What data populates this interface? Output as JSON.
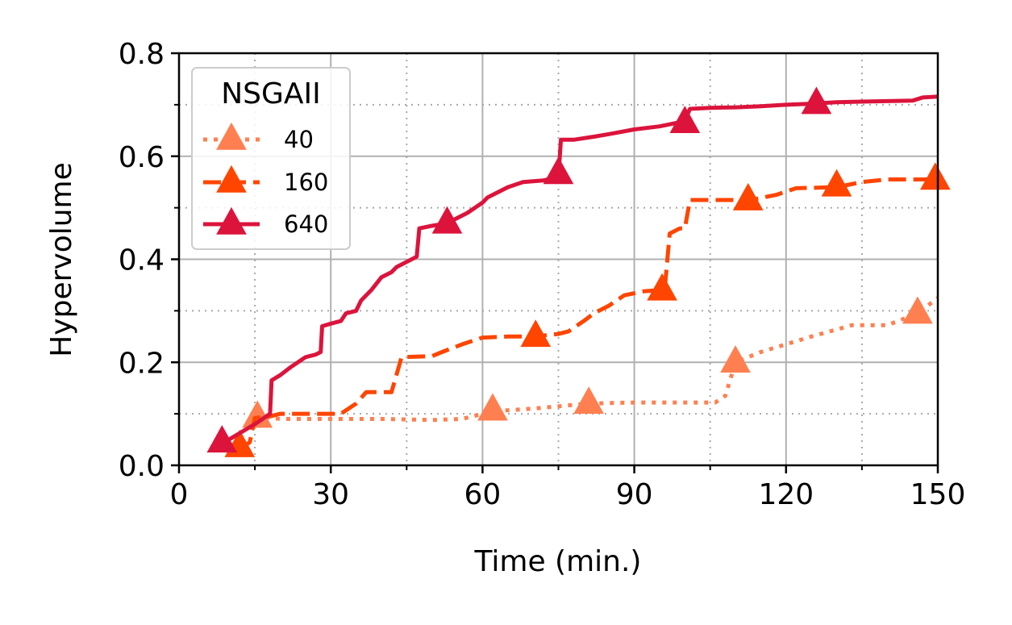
{
  "chart_data": {
    "type": "line",
    "xlabel": "Time (min.)",
    "ylabel": "Hypervolume",
    "xlim": [
      0,
      150
    ],
    "ylim": [
      0,
      0.8
    ],
    "x_ticks": [
      0,
      30,
      60,
      90,
      120,
      150
    ],
    "y_ticks": [
      0.0,
      0.2,
      0.4,
      0.6,
      0.8
    ],
    "x_tick_labels": [
      "0",
      "30",
      "60",
      "90",
      "120",
      "150"
    ],
    "y_tick_labels": [
      "0.0",
      "0.2",
      "0.4",
      "0.6",
      "0.8"
    ],
    "x_minor_grid": [
      15,
      45,
      75,
      105,
      135
    ],
    "y_minor_grid": [
      0.1,
      0.3,
      0.5,
      0.7
    ],
    "grid": true,
    "legend": {
      "title": "NSGAII",
      "placement": "top-left"
    },
    "series": [
      {
        "name": "40",
        "color": "#FF7F50",
        "linestyle": "dotted",
        "marker": "triangle",
        "points": [
          [
            15,
            0.095
          ],
          [
            20,
            0.09
          ],
          [
            30,
            0.09
          ],
          [
            40,
            0.09
          ],
          [
            50,
            0.088
          ],
          [
            56,
            0.09
          ],
          [
            62,
            0.105
          ],
          [
            70,
            0.11
          ],
          [
            81,
            0.12
          ],
          [
            90,
            0.122
          ],
          [
            100,
            0.122
          ],
          [
            106,
            0.122
          ],
          [
            108,
            0.135
          ],
          [
            110,
            0.2
          ],
          [
            115,
            0.22
          ],
          [
            120,
            0.235
          ],
          [
            125,
            0.25
          ],
          [
            133,
            0.272
          ],
          [
            140,
            0.272
          ],
          [
            146,
            0.295
          ],
          [
            150,
            0.325
          ]
        ],
        "markers": [
          [
            15.5,
            0.093
          ],
          [
            62,
            0.107
          ],
          [
            81,
            0.12
          ],
          [
            110,
            0.2
          ],
          [
            146,
            0.295
          ]
        ]
      },
      {
        "name": "160",
        "color": "#FF4500",
        "linestyle": "dashed",
        "marker": "triangle",
        "points": [
          [
            12,
            0.03
          ],
          [
            14,
            0.045
          ],
          [
            15,
            0.092
          ],
          [
            18,
            0.095
          ],
          [
            20,
            0.1
          ],
          [
            25,
            0.1
          ],
          [
            28,
            0.1
          ],
          [
            32,
            0.1
          ],
          [
            35,
            0.12
          ],
          [
            37,
            0.142
          ],
          [
            42,
            0.142
          ],
          [
            44,
            0.21
          ],
          [
            50,
            0.212
          ],
          [
            52,
            0.22
          ],
          [
            56,
            0.235
          ],
          [
            60,
            0.248
          ],
          [
            65,
            0.25
          ],
          [
            70,
            0.25
          ],
          [
            75,
            0.255
          ],
          [
            77,
            0.26
          ],
          [
            80,
            0.28
          ],
          [
            82,
            0.295
          ],
          [
            85,
            0.31
          ],
          [
            88,
            0.33
          ],
          [
            92,
            0.338
          ],
          [
            95,
            0.34
          ],
          [
            96,
            0.34
          ],
          [
            97,
            0.45
          ],
          [
            99,
            0.46
          ],
          [
            100,
            0.46
          ],
          [
            101,
            0.515
          ],
          [
            105,
            0.515
          ],
          [
            110,
            0.515
          ],
          [
            113,
            0.515
          ],
          [
            118,
            0.525
          ],
          [
            122,
            0.538
          ],
          [
            130,
            0.54
          ],
          [
            135,
            0.55
          ],
          [
            140,
            0.555
          ],
          [
            150,
            0.555
          ]
        ],
        "markers": [
          [
            12,
            0.036
          ],
          [
            70.5,
            0.25
          ],
          [
            95.5,
            0.34
          ],
          [
            112.5,
            0.515
          ],
          [
            130,
            0.542
          ],
          [
            149.5,
            0.555
          ]
        ]
      },
      {
        "name": "640",
        "color": "#DC143C",
        "linestyle": "solid",
        "marker": "triangle",
        "points": [
          [
            9,
            0.045
          ],
          [
            15,
            0.08
          ],
          [
            18,
            0.1
          ],
          [
            18.3,
            0.165
          ],
          [
            20,
            0.175
          ],
          [
            22,
            0.19
          ],
          [
            25,
            0.21
          ],
          [
            27,
            0.215
          ],
          [
            28,
            0.22
          ],
          [
            28.3,
            0.27
          ],
          [
            30,
            0.275
          ],
          [
            32,
            0.28
          ],
          [
            33,
            0.295
          ],
          [
            35,
            0.3
          ],
          [
            36,
            0.32
          ],
          [
            38,
            0.34
          ],
          [
            40,
            0.365
          ],
          [
            42,
            0.375
          ],
          [
            43,
            0.385
          ],
          [
            45,
            0.395
          ],
          [
            47,
            0.405
          ],
          [
            47.5,
            0.46
          ],
          [
            50,
            0.465
          ],
          [
            53,
            0.47
          ],
          [
            55,
            0.48
          ],
          [
            57,
            0.49
          ],
          [
            60,
            0.51
          ],
          [
            61,
            0.52
          ],
          [
            63,
            0.53
          ],
          [
            65,
            0.54
          ],
          [
            68,
            0.55
          ],
          [
            72,
            0.553
          ],
          [
            75,
            0.56
          ],
          [
            75.5,
            0.632
          ],
          [
            78,
            0.632
          ],
          [
            82,
            0.638
          ],
          [
            85,
            0.643
          ],
          [
            90,
            0.652
          ],
          [
            95,
            0.658
          ],
          [
            100,
            0.668
          ],
          [
            101,
            0.692
          ],
          [
            105,
            0.694
          ],
          [
            110,
            0.695
          ],
          [
            115,
            0.697
          ],
          [
            120,
            0.7
          ],
          [
            125,
            0.702
          ],
          [
            130,
            0.705
          ],
          [
            135,
            0.706
          ],
          [
            140,
            0.707
          ],
          [
            145,
            0.708
          ],
          [
            147,
            0.714
          ],
          [
            150,
            0.716
          ]
        ],
        "markers": [
          [
            8.5,
            0.045
          ],
          [
            53,
            0.47
          ],
          [
            75,
            0.566
          ],
          [
            100,
            0.665
          ],
          [
            126,
            0.702
          ]
        ]
      }
    ]
  }
}
